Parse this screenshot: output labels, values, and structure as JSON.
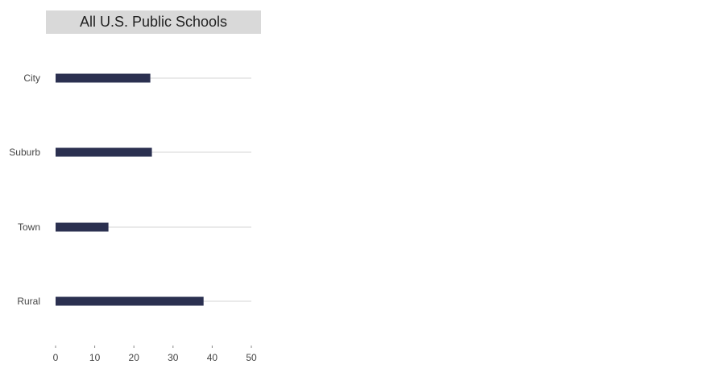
{
  "panel": {
    "title": "All U.S. Public Schools"
  },
  "colors": {
    "bar": "#2b3050",
    "track": "#e3e3e3",
    "title_background": "#d9d9d9"
  },
  "chart_data": {
    "type": "bar",
    "orientation": "horizontal",
    "title": "All U.S. Public Schools",
    "categories": [
      "City",
      "Suburb",
      "Town",
      "Rural"
    ],
    "values": [
      24.2,
      24.6,
      13.5,
      37.8
    ],
    "xlim": [
      0,
      50
    ],
    "xticks": [
      0,
      10,
      20,
      30,
      40,
      50
    ],
    "xlabel": "",
    "ylabel": "",
    "grid": false,
    "legend": "none"
  }
}
